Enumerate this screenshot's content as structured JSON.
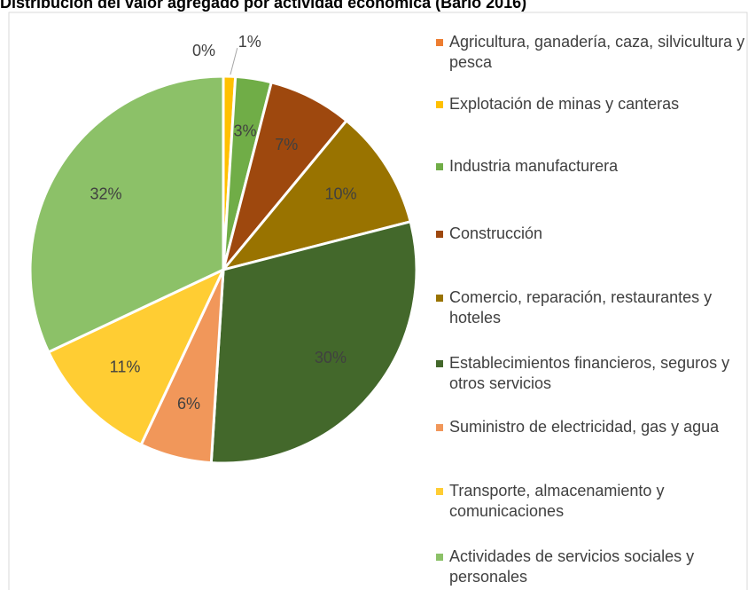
{
  "chart_data": {
    "type": "pie",
    "title": "Distribución del valor agregado por actividad económica (Bario 2016)",
    "categories": [
      "Agricultura, ganadería, caza, silvicultura y pesca",
      "Explotación de minas y canteras",
      "Industria manufacturera",
      "Construcción",
      "Comercio, reparación, restaurantes y hoteles",
      "Establecimientos financieros, seguros y otros servicios",
      "Suministro de electricidad, gas y agua",
      "Transporte, almacenamiento y comunicaciones",
      "Actividades de servicios sociales y personales"
    ],
    "values": [
      0,
      1,
      3,
      7,
      10,
      30,
      6,
      11,
      32
    ],
    "value_labels": [
      "0%",
      "1%",
      "3%",
      "7%",
      "10%",
      "30%",
      "6%",
      "11%",
      "32%"
    ],
    "colors": [
      "#ED7D31",
      "#FFC000",
      "#70AD47",
      "#9E480E",
      "#997300",
      "#43682B",
      "#F1975A",
      "#FFCD33",
      "#8CC168"
    ],
    "legend": "right"
  }
}
